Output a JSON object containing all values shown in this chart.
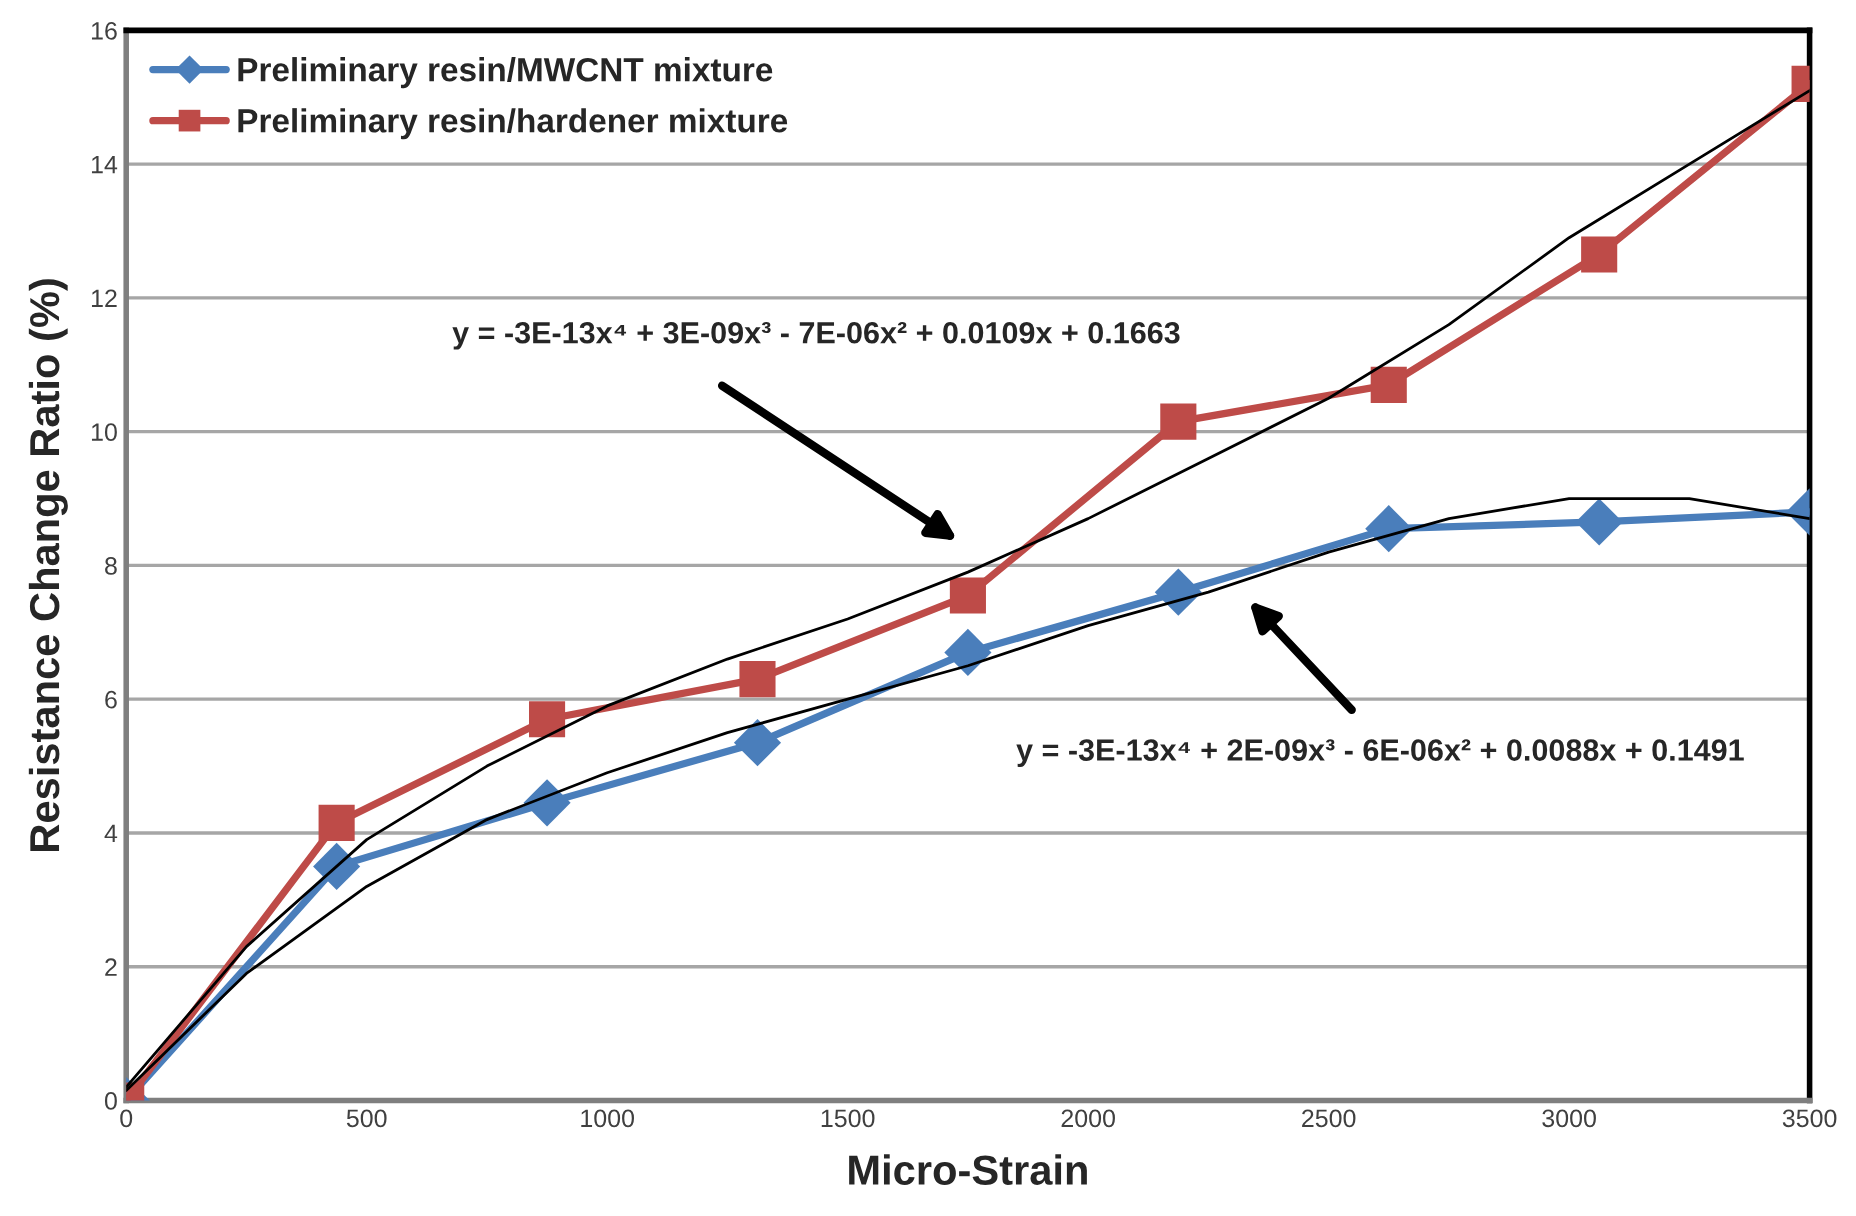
{
  "chart_data": {
    "type": "line",
    "xlabel": "Micro-Strain",
    "ylabel": "Resistance Change Ratio (%)",
    "xlim": [
      0,
      3500
    ],
    "xticks": [
      0,
      500,
      1000,
      1500,
      2000,
      2500,
      3000,
      3500
    ],
    "ylim": [
      0,
      16
    ],
    "yticks": [
      0,
      2,
      4,
      6,
      8,
      10,
      12,
      14,
      16
    ],
    "grid": "y",
    "legend": "top left",
    "series": [
      {
        "name": "Preliminary resin/MWCNT mixture",
        "color": "#4a7ebb",
        "marker": "diamond",
        "x": [
          0,
          437.5,
          875,
          1312.5,
          1750,
          2187.5,
          2625,
          3062.5,
          3500
        ],
        "values": [
          0,
          3.5,
          4.45,
          5.35,
          6.7,
          7.6,
          8.55,
          8.65,
          8.8
        ]
      },
      {
        "name": "Preliminary resin/hardener mixture",
        "color": "#be4b48",
        "marker": "square",
        "x": [
          0,
          437.5,
          875,
          1312.5,
          1750,
          2187.5,
          2625,
          3062.5,
          3500
        ],
        "values": [
          0,
          4.15,
          5.7,
          6.3,
          7.55,
          10.15,
          10.7,
          12.65,
          15.2
        ]
      },
      {
        "color": "#000000",
        "marker": "none",
        "x": [
          0,
          250,
          500,
          750,
          1000,
          1250,
          1500,
          1750,
          2000,
          2250,
          2500,
          2750,
          3000,
          3250,
          3500
        ],
        "values": [
          0.15,
          1.9,
          3.2,
          4.2,
          4.9,
          5.5,
          6.0,
          6.5,
          7.1,
          7.6,
          8.2,
          8.7,
          9.0,
          9.0,
          8.7
        ]
      },
      {
        "color": "#000000",
        "marker": "none",
        "x": [
          0,
          250,
          500,
          750,
          1000,
          1250,
          1500,
          1750,
          2000,
          2250,
          2500,
          2750,
          3000,
          3250,
          3500
        ],
        "values": [
          0.2,
          2.3,
          3.9,
          5.0,
          5.9,
          6.6,
          7.2,
          7.9,
          8.7,
          9.6,
          10.5,
          11.6,
          12.9,
          14.0,
          15.1
        ]
      }
    ],
    "annotations": [
      "y = -3E-13x⁴ + 3E-09x³ - 7E-06x² + 0.0109x + 0.1663",
      "y = -3E-13x⁴ + 2E-09x³ - 6E-06x² + 0.0088x + 0.1491"
    ]
  }
}
